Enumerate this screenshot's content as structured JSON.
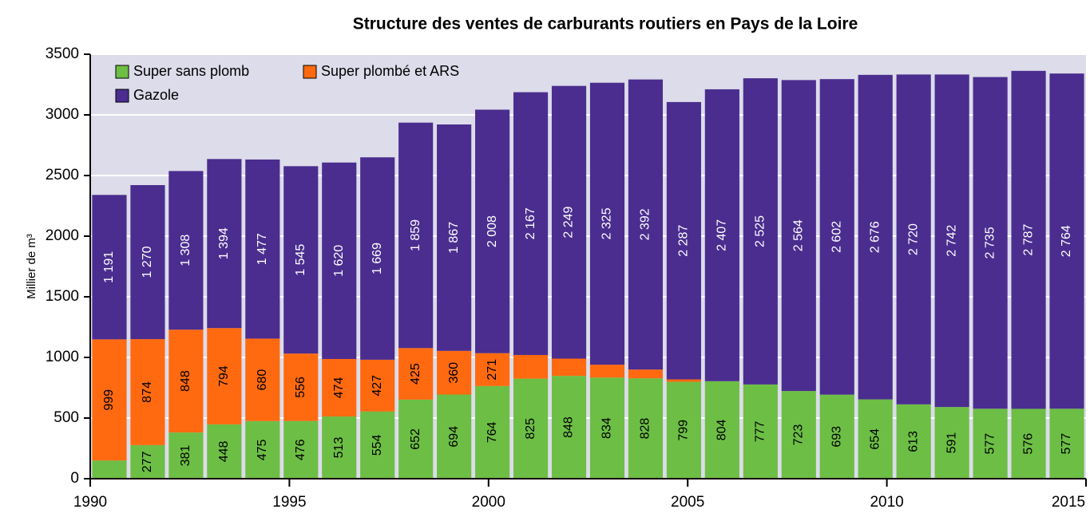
{
  "chart_data": {
    "type": "stacked_bar",
    "title": "Structure des ventes de carburants routiers en Pays de la Loire",
    "y_label": "Millier de m³",
    "x": [
      1990,
      1991,
      1992,
      1993,
      1994,
      1995,
      1996,
      1997,
      1998,
      1999,
      2000,
      2001,
      2002,
      2003,
      2004,
      2005,
      2006,
      2007,
      2008,
      2009,
      2010,
      2011,
      2012,
      2013,
      2014,
      2015
    ],
    "xlim": [
      1990,
      2015
    ],
    "xticks": [
      1990,
      1995,
      2000,
      2005,
      2010,
      2015
    ],
    "ylim": [
      0,
      3500
    ],
    "yticks": [
      0,
      500,
      1000,
      1500,
      2000,
      2500,
      3000,
      3500
    ],
    "grid": true,
    "legend": "top-left",
    "series": [
      {
        "name": "Super sans plomb",
        "color": "#6dbe45",
        "values": [
          150,
          277,
          381,
          448,
          475,
          476,
          513,
          554,
          652,
          694,
          764,
          825,
          848,
          834,
          828,
          799,
          804,
          777,
          723,
          693,
          654,
          613,
          591,
          577,
          576,
          577
        ],
        "value_labels": [
          null,
          "277",
          "381",
          "448",
          "475",
          "476",
          "513",
          "554",
          "652",
          "694",
          "764",
          "825",
          "848",
          "834",
          "828",
          "799",
          "804",
          "777",
          "723",
          "693",
          "654",
          "613",
          "591",
          "577",
          "576",
          "577"
        ]
      },
      {
        "name": "Super plombé et ARS",
        "color": "#ff6a10",
        "values": [
          999,
          874,
          848,
          794,
          680,
          556,
          474,
          427,
          425,
          360,
          271,
          195,
          142,
          106,
          72,
          20,
          0,
          0,
          0,
          0,
          0,
          0,
          0,
          0,
          0,
          0
        ],
        "value_labels": [
          "999",
          "874",
          "848",
          "794",
          "680",
          "556",
          "474",
          "427",
          "425",
          "360",
          "271",
          null,
          null,
          null,
          null,
          null,
          null,
          null,
          null,
          null,
          null,
          null,
          null,
          null,
          null,
          null
        ]
      },
      {
        "name": "Gazole",
        "color": "#4b2d8f",
        "values": [
          1191,
          1270,
          1308,
          1394,
          1477,
          1545,
          1620,
          1669,
          1859,
          1867,
          2008,
          2167,
          2249,
          2325,
          2392,
          2287,
          2407,
          2525,
          2564,
          2602,
          2676,
          2720,
          2742,
          2735,
          2787,
          2764
        ],
        "value_labels": [
          "1 191",
          "1 270",
          "1 308",
          "1 394",
          "1 477",
          "1 545",
          "1 620",
          "1 669",
          "1 859",
          "1 867",
          "2 008",
          "2 167",
          "2 249",
          "2 325",
          "2 392",
          "2 287",
          "2 407",
          "2 525",
          "2 564",
          "2 602",
          "2 676",
          "2 720",
          "2 742",
          "2 735",
          "2 787",
          "2 764"
        ]
      }
    ]
  }
}
